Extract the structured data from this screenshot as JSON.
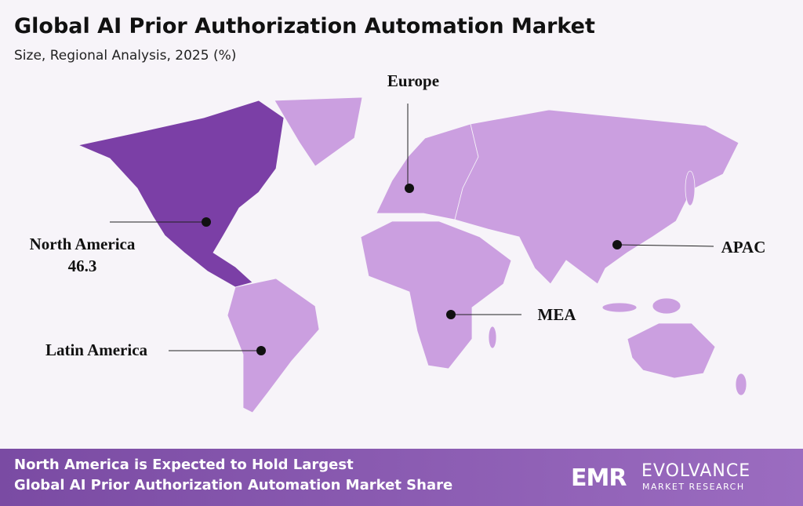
{
  "header": {
    "title": "Global AI Prior Authorization Automation Market",
    "subtitle": "Size, Regional Analysis, 2025 (%)"
  },
  "map": {
    "regions": [
      {
        "name": "North America",
        "value": 46.3,
        "color": "#7b3fa6"
      },
      {
        "name": "Europe",
        "color": "#cb9fe0"
      },
      {
        "name": "APAC",
        "color": "#cb9fe0"
      },
      {
        "name": "MEA",
        "color": "#cb9fe0"
      },
      {
        "name": "Latin America",
        "color": "#cb9fe0"
      }
    ]
  },
  "footer": {
    "lines": [
      "North America is Expected to Hold Largest",
      "Global AI Prior Authorization Automation Market Share"
    ],
    "logo": {
      "mark": "EMR",
      "name": "EVOLVANCE",
      "tagline": "MARKET RESEARCH"
    }
  }
}
